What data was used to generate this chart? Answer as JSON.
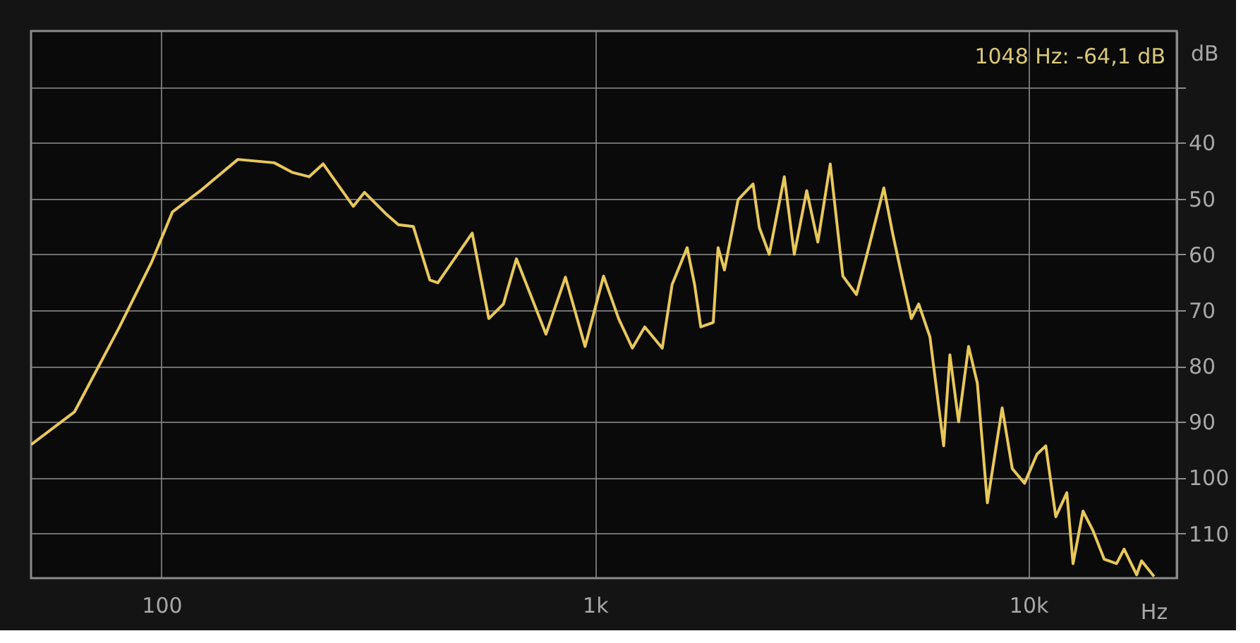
{
  "chart_data": {
    "type": "line",
    "xlabel": "Hz",
    "ylabel": "dB",
    "annotations": [
      "1048 Hz: -64,1 dB"
    ],
    "log": "x",
    "grid": true,
    "marker": "none",
    "line_style": "solid",
    "xlim": [
      50,
      22000
    ],
    "xticks": [
      {
        "value": 100,
        "label": "100"
      },
      {
        "value": 1000,
        "label": "1k"
      },
      {
        "value": 10000,
        "label": "10k"
      }
    ],
    "ylim": [
      -118,
      -20
    ],
    "yticks": [
      {
        "value": -30,
        "label": null
      },
      {
        "value": -40,
        "label": "40"
      },
      {
        "value": -50,
        "label": "50"
      },
      {
        "value": -60,
        "label": "60"
      },
      {
        "value": -70,
        "label": "70"
      },
      {
        "value": -80,
        "label": "80"
      },
      {
        "value": -90,
        "label": "90"
      },
      {
        "value": -100,
        "label": "100"
      },
      {
        "value": -110,
        "label": "110"
      }
    ],
    "series": [
      {
        "color": "#e8c85a",
        "x": [
          50,
          63,
          80,
          95,
          106,
          123,
          150,
          182,
          200,
          219,
          236,
          277,
          294,
          329,
          352,
          381,
          416,
          434,
          521,
          569,
          615,
          659,
          771,
          855,
          949,
          1047,
          1134,
          1220,
          1303,
          1430,
          1507,
          1632,
          1698,
          1755,
          1875,
          1924,
          1990,
          2140,
          2317,
          2395,
          2525,
          2735,
          2884,
          3081,
          3268,
          3491,
          3733,
          4013,
          4260,
          4641,
          4862,
          5129,
          5370,
          5585,
          5929,
          6377,
          6592,
          6904,
          7280,
          7627,
          8043,
          8702,
          9183,
          9800,
          10470,
          10970,
          11570,
          12270,
          12680,
          13370,
          14100,
          14960,
          15980,
          16630,
          17780,
          18250,
          19500
        ],
        "values": [
          -94.1,
          -88.2,
          -73,
          -61.3,
          -52.4,
          -48.6,
          -43,
          -43.6,
          -45.3,
          -46.1,
          -43.8,
          -51.4,
          -48.9,
          -52.7,
          -54.7,
          -55,
          -64.6,
          -65.1,
          -56.2,
          -71.5,
          -68.9,
          -60.8,
          -74.3,
          -64.1,
          -76.5,
          -63.9,
          -71.5,
          -76.8,
          -73,
          -76.8,
          -65.4,
          -58.8,
          -65.4,
          -73,
          -72.2,
          -58.8,
          -62.8,
          -50.2,
          -47.4,
          -55.2,
          -60,
          -46.1,
          -60,
          -48.6,
          -57.8,
          -43.8,
          -63.9,
          -67.2,
          -59.5,
          -48.1,
          -56.2,
          -64.6,
          -71.5,
          -68.9,
          -74.8,
          -94.3,
          -78,
          -90,
          -76.5,
          -83.1,
          -104.5,
          -87.5,
          -98.4,
          -101,
          -95.8,
          -94.3,
          -107,
          -102.7,
          -115.4,
          -106,
          -109.5,
          -114.6,
          -115.4,
          -112.8,
          -117.4,
          -114.9,
          -117.7
        ]
      }
    ]
  }
}
